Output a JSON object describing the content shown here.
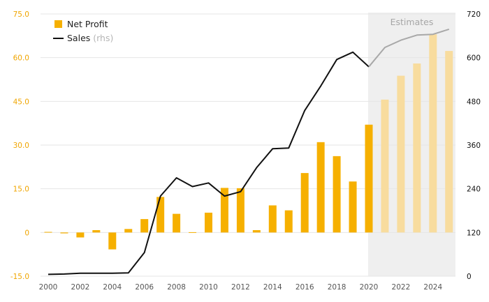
{
  "chart_data": {
    "type": "bar+line",
    "x": [
      2000,
      2001,
      2002,
      2003,
      2004,
      2005,
      2006,
      2007,
      2008,
      2009,
      2010,
      2011,
      2012,
      2013,
      2014,
      2015,
      2016,
      2017,
      2018,
      2019,
      2020,
      2021,
      2022,
      2023,
      2024,
      2025
    ],
    "x_ticks": [
      2000,
      2002,
      2004,
      2006,
      2008,
      2010,
      2012,
      2014,
      2016,
      2018,
      2020,
      2022,
      2024
    ],
    "series": [
      {
        "name": "Net Profit",
        "kind": "bar",
        "axis": "left",
        "values": [
          0.2,
          -0.3,
          -1.7,
          0.8,
          -5.8,
          1.2,
          4.6,
          12.2,
          6.4,
          0.1,
          6.8,
          15.3,
          15.2,
          0.8,
          9.3,
          7.6,
          20.4,
          31.0,
          26.2,
          17.5,
          37.0,
          45.6,
          53.8,
          58.0,
          68.0,
          62.3
        ]
      },
      {
        "name": "Sales",
        "name_suffix": "(rhs)",
        "kind": "line",
        "axis": "right",
        "values": [
          5,
          6,
          8,
          8,
          8,
          9,
          65,
          220,
          270,
          246,
          256,
          220,
          232,
          298,
          350,
          352,
          455,
          522,
          595,
          615,
          575,
          628,
          648,
          662,
          664,
          678
        ]
      }
    ],
    "estimate_start": 2020,
    "estimate_label": "Estimates",
    "y_left": {
      "min": -15.0,
      "max": 75.0,
      "ticks": [
        "-15.0",
        "0",
        "15.0",
        "30.0",
        "45.0",
        "60.0",
        "75.0"
      ]
    },
    "y_right": {
      "min": 0,
      "max": 720,
      "ticks": [
        "0",
        "120",
        "240",
        "360",
        "480",
        "600",
        "720"
      ]
    },
    "grid": true,
    "legend_position": "top-left",
    "colors": {
      "bar": "#f6b000",
      "bar_estimate": "#f8dc9e",
      "line": "#111111",
      "line_estimate": "#a8a8a8",
      "estimate_shade": "#efefef",
      "left_axis_text": "#f0a500",
      "right_axis_text": "#111111",
      "x_axis_text": "#555555",
      "grid": "#e6e6e6"
    }
  }
}
